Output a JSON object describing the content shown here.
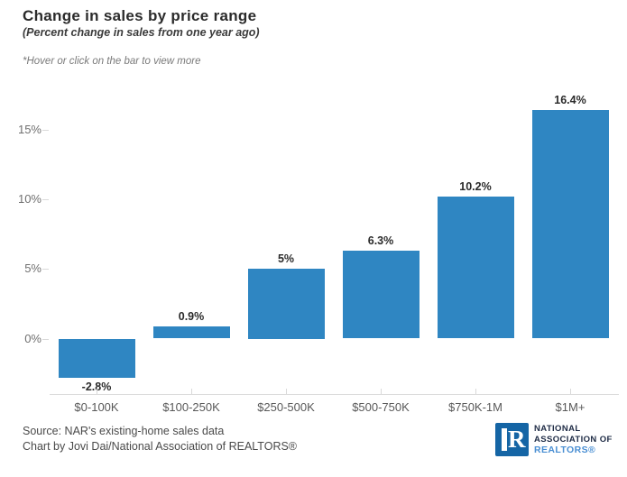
{
  "header": {
    "title": "Change in sales by price range",
    "subtitle": "(Percent change in sales from one year ago)",
    "note": "*Hover or click on the bar to view more"
  },
  "chart_data": {
    "type": "bar",
    "title": "Change in sales by price range",
    "subtitle": "(Percent change in sales from one year ago)",
    "xlabel": "",
    "ylabel": "",
    "categories": [
      "$0-100K",
      "$100-250K",
      "$250-500K",
      "$500-750K",
      "$750K-1M",
      "$1M+"
    ],
    "values": [
      -2.8,
      0.9,
      5,
      6.3,
      10.2,
      16.4
    ],
    "value_labels": [
      "-2.8%",
      "0.9%",
      "5%",
      "6.3%",
      "10.2%",
      "16.4%"
    ],
    "y_tick_values": [
      0,
      5,
      10,
      15
    ],
    "y_tick_labels": [
      "0%",
      "5%",
      "10%",
      "15%"
    ],
    "ylim": [
      -4,
      17.5
    ],
    "grid": false,
    "legend": false,
    "bar_color": "#2F86C2"
  },
  "footer": {
    "source_line": "Source: NAR's existing-home sales data",
    "credit_line": "Chart by Jovi Dai/National Association of REALTORS®"
  },
  "logo": {
    "r_letter": "R",
    "line1": "NATIONAL",
    "line2": "ASSOCIATION OF",
    "line3": "REALTORS®",
    "square_color": "#1565A5",
    "navy_color": "#1E2B45",
    "light_blue_color": "#4A8FD3"
  }
}
